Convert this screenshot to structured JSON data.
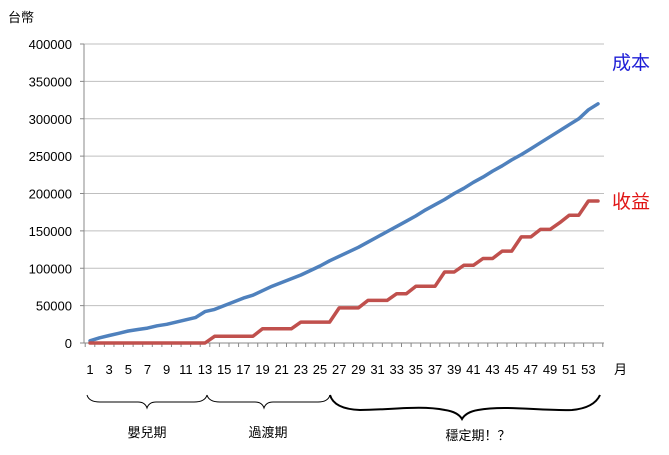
{
  "chart_data": {
    "type": "line",
    "ylabel": "台幣",
    "xlabel": "月",
    "ylim": [
      0,
      400000
    ],
    "yticks": [
      "0",
      "50000",
      "100000",
      "150000",
      "200000",
      "250000",
      "300000",
      "350000",
      "400000"
    ],
    "x": [
      1,
      2,
      3,
      4,
      5,
      6,
      7,
      8,
      9,
      10,
      11,
      12,
      13,
      14,
      15,
      16,
      17,
      18,
      19,
      20,
      21,
      22,
      23,
      24,
      25,
      26,
      27,
      28,
      29,
      30,
      31,
      32,
      33,
      34,
      35,
      36,
      37,
      38,
      39,
      40,
      41,
      42,
      43,
      44,
      45,
      46,
      47,
      48,
      49,
      50,
      51,
      52,
      53,
      54
    ],
    "xtick_labels": [
      "1",
      "3",
      "5",
      "7",
      "9",
      "11",
      "13",
      "15",
      "17",
      "19",
      "21",
      "23",
      "25",
      "27",
      "29",
      "31",
      "33",
      "35",
      "37",
      "39",
      "41",
      "43",
      "45",
      "47",
      "49",
      "51",
      "53"
    ],
    "series": [
      {
        "name": "成本",
        "color": "#4f81bd",
        "values": [
          3000,
          7000,
          10000,
          13000,
          16000,
          18000,
          20000,
          23000,
          25000,
          28000,
          31000,
          34000,
          42000,
          45000,
          50000,
          55000,
          60000,
          64000,
          70000,
          76000,
          81000,
          86000,
          91000,
          97000,
          103000,
          110000,
          116000,
          122000,
          128000,
          135000,
          142000,
          149000,
          156000,
          163000,
          170000,
          178000,
          185000,
          192000,
          200000,
          207000,
          215000,
          222000,
          230000,
          237000,
          245000,
          252000,
          260000,
          268000,
          276000,
          284000,
          292000,
          300000,
          312000,
          320000
        ]
      },
      {
        "name": "收益",
        "color": "#c0504d",
        "values": [
          0,
          0,
          0,
          0,
          0,
          0,
          0,
          0,
          0,
          0,
          0,
          0,
          0,
          9000,
          9000,
          9000,
          9000,
          9000,
          19000,
          19000,
          19000,
          19000,
          28000,
          28000,
          28000,
          28000,
          47000,
          47000,
          47000,
          57000,
          57000,
          57000,
          66000,
          66000,
          76000,
          76000,
          76000,
          95000,
          95000,
          104000,
          104000,
          113000,
          113000,
          123000,
          123000,
          142000,
          142000,
          152000,
          152000,
          161000,
          171000,
          171000,
          190000,
          190000
        ]
      }
    ],
    "phases": [
      "嬰兒期",
      "過渡期",
      "穩定期！？"
    ]
  }
}
